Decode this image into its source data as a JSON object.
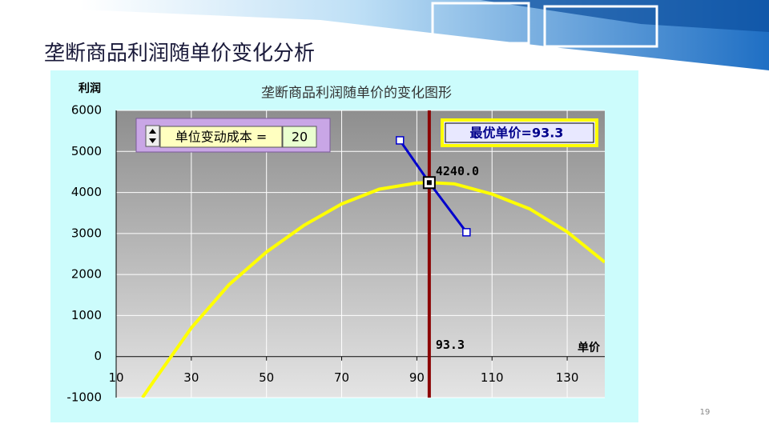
{
  "slide": {
    "title": "垄断商品利润随单价变化分析",
    "page_number": "19"
  },
  "chart_data": {
    "type": "line",
    "title": "垄断商品利润随单价的变化图形",
    "x_label": "单价",
    "y_label": "利润",
    "xlim": [
      10,
      140
    ],
    "xticks": [
      10,
      30,
      50,
      70,
      90,
      110,
      130
    ],
    "ylim": [
      -1000,
      6000
    ],
    "yticks": [
      -1000,
      0,
      1000,
      2000,
      3000,
      4000,
      5000,
      6000
    ],
    "grid": true,
    "series": [
      {
        "color": "#ffff00",
        "x": [
          17,
          20,
          30,
          40,
          50,
          60,
          70,
          80,
          90,
          93.3,
          100,
          110,
          120,
          130,
          140
        ],
        "values": [
          -1000,
          -600,
          700,
          1750,
          2550,
          3200,
          3720,
          4080,
          4230,
          4240,
          4210,
          3960,
          3600,
          3040,
          2300
        ]
      },
      {
        "color": "#0000cc",
        "markers": true,
        "x": [
          85.5,
          93.3,
          103.2
        ],
        "values": [
          5270,
          4240,
          3030
        ]
      }
    ],
    "optimal": {
      "x": 93.3,
      "x_label": "93.3",
      "y": 4240,
      "y_label": "4240.0",
      "box_text": "最优单价=93.3",
      "color": "#8b0000"
    },
    "control": {
      "label": "单位变动成本 =",
      "value": 20
    }
  }
}
